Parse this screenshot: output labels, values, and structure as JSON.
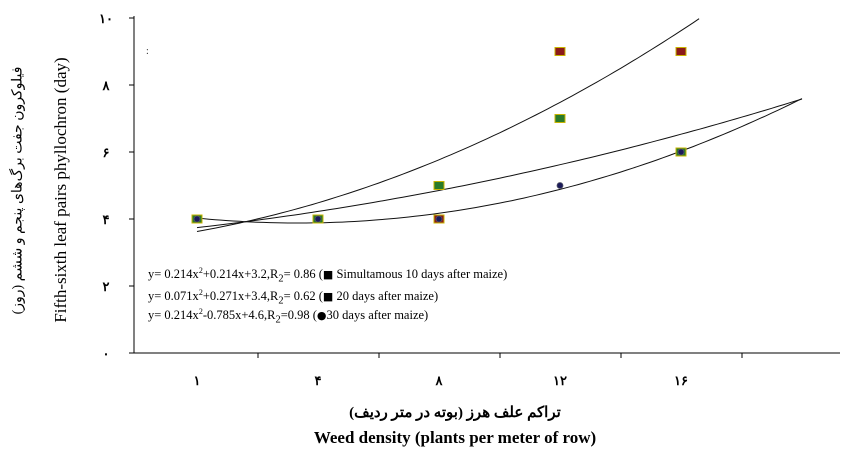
{
  "chart_data": {
    "type": "scatter",
    "title": "",
    "xlabel_fa": "تراکم علف هرز (بوته در متر ردیف)",
    "xlabel": "Weed density (plants per meter of row)",
    "ylabel_fa": "فیلوکرون جفت برگ‌های پنجم و ششم (روز)",
    "ylabel": "Fifth-sixth leaf pairs phyllochron (day)",
    "categories": [
      "1",
      "4",
      "8",
      "12",
      "16"
    ],
    "x_tick_labels": [
      "۱",
      "۴",
      "۸",
      "۱۲",
      "۱۶"
    ],
    "y_ticks": [
      0,
      2,
      4,
      6,
      8,
      10
    ],
    "y_tick_labels": [
      "۰",
      "۲",
      "۴",
      "۶",
      "۸",
      "۱۰"
    ],
    "ylim": [
      0,
      10
    ],
    "grid": false,
    "series": [
      {
        "name": "Simultamous 10 days after maize",
        "marker": "square",
        "color": "#8b1a1a",
        "values": [
          4,
          4,
          4,
          9,
          9
        ],
        "equation": {
          "prefix": "y= 0.214x",
          "rest": "+0.214x+3.2,R",
          "r_sub": "2",
          "r2": "= 0.86 (",
          "glyph": "■",
          "label": " Simultamous 10 days after maize)"
        }
      },
      {
        "name": "20 days after maize",
        "marker": "square",
        "color": "#2a7a2a",
        "values": [
          4,
          4,
          5,
          7,
          6
        ],
        "equation": {
          "prefix": "y= 0.071x",
          "rest": "+0.271x+3.4,R",
          "r_sub": "2",
          "r2": "= 0.62 (",
          "glyph": "■",
          "label": " 20 days after maize)"
        }
      },
      {
        "name": "30 days after maize",
        "marker": "circle",
        "color": "#1a1a5a",
        "values": [
          4,
          4,
          4,
          5,
          6
        ],
        "equation": {
          "prefix": "y= 0.214x",
          "rest": "-0.785x+4.6,R",
          "r_sub": "2",
          "r2": "=0.98 (",
          "glyph": "●",
          "label": "30 days after maize)"
        }
      }
    ],
    "fit_curves": [
      {
        "a": 0.214,
        "b": 0.214,
        "c": 3.2
      },
      {
        "a": 0.071,
        "b": 0.271,
        "c": 3.4
      },
      {
        "a": 0.214,
        "b": -0.785,
        "c": 4.6
      }
    ]
  },
  "stray_mark": ":"
}
